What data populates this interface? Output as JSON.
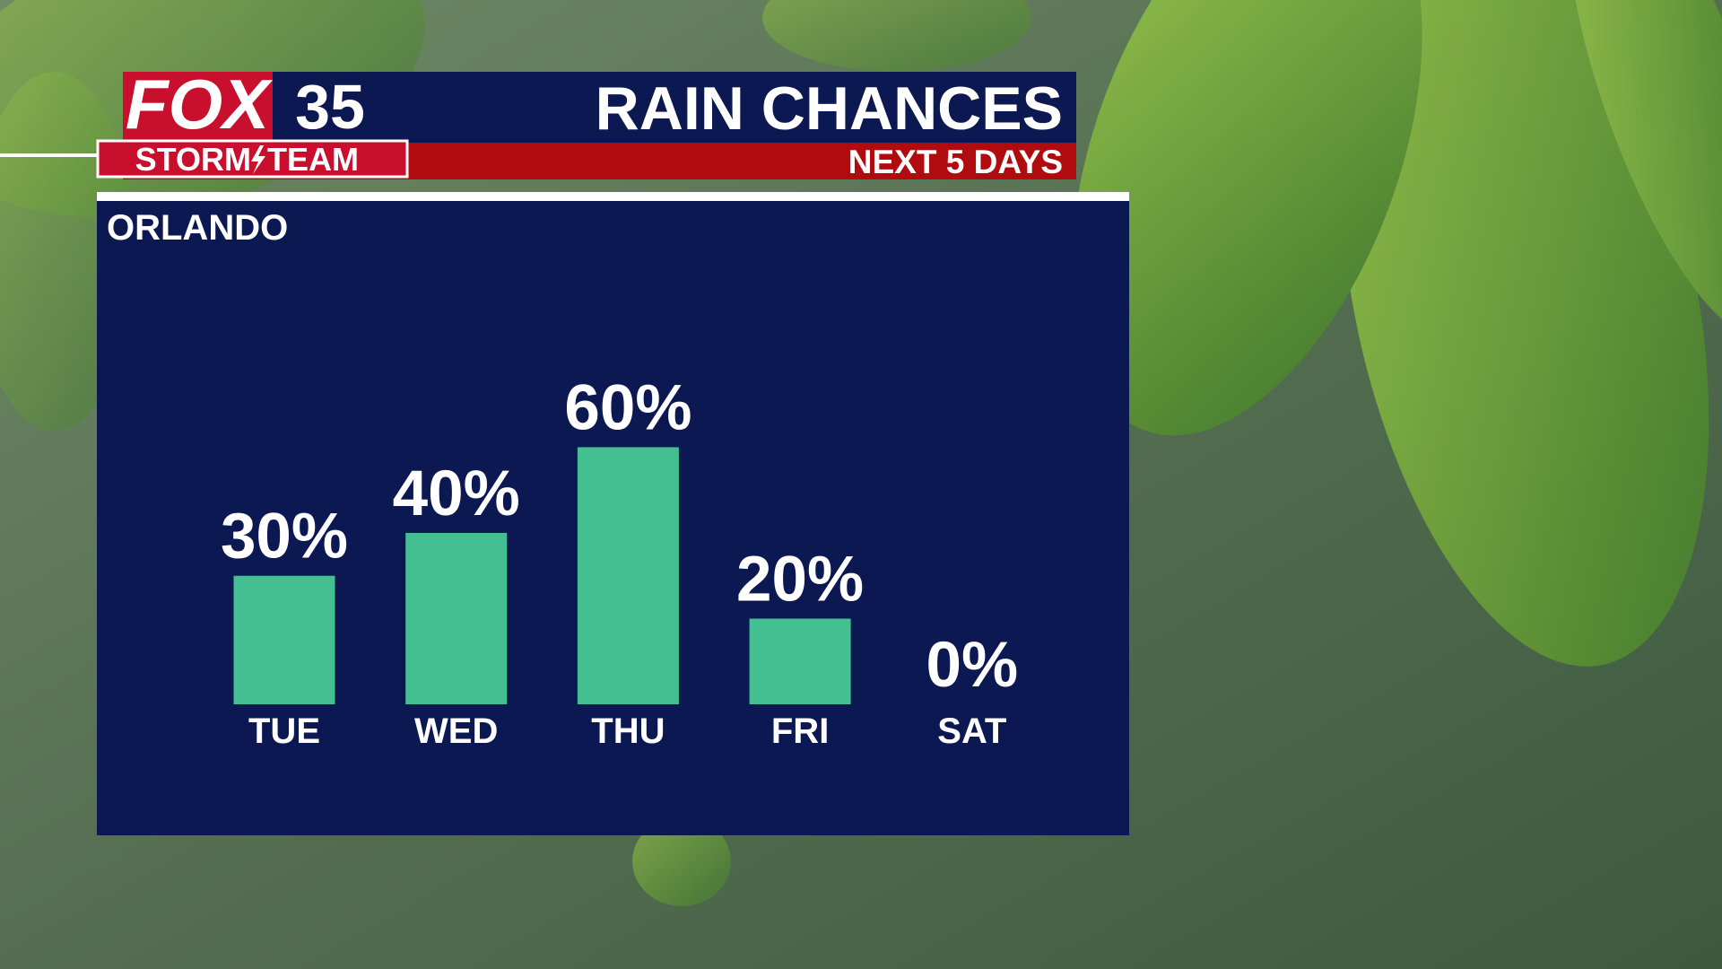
{
  "brand": {
    "name": "FOX",
    "number": "35",
    "team_left": "STORM",
    "team_right": "TEAM"
  },
  "chart_data": {
    "type": "bar",
    "title": "RAIN CHANCES",
    "subtitle": "NEXT 5 DAYS",
    "location": "ORLANDO",
    "categories": [
      "TUE",
      "WED",
      "THU",
      "FRI",
      "SAT"
    ],
    "values": [
      30,
      40,
      60,
      20,
      0
    ],
    "value_labels": [
      "30%",
      "40%",
      "60%",
      "20%",
      "0%"
    ],
    "color": "#43bf91"
  }
}
